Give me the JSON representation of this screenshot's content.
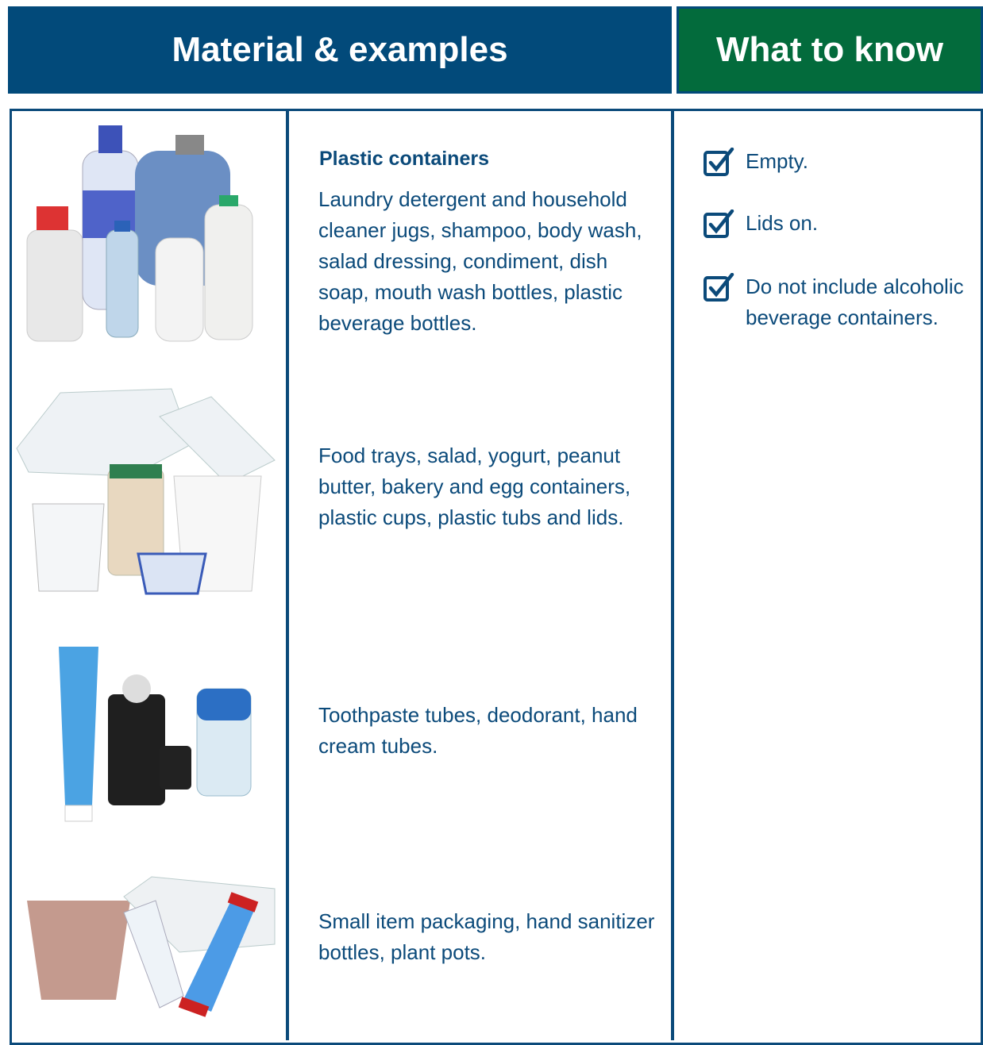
{
  "header": {
    "columns": [
      "Material & examples",
      "What to know"
    ]
  },
  "rows": [
    {
      "heading": "Plastic containers",
      "description": "Laundry detergent and household cleaner jugs, shampoo, body wash, salad dressing, condiment, dish soap, mouth wash bottles, plastic beverage bottles."
    },
    {
      "description": "Food trays, salad, yogurt, peanut butter, bakery and egg containers, plastic cups, plastic tubs and lids."
    },
    {
      "description": "Toothpaste tubes, deodorant, hand cream tubes."
    },
    {
      "description": "Small item packaging, hand sanitizer bottles, plant pots."
    }
  ],
  "checklist": [
    "Empty.",
    "Lids on.",
    "Do not include alcoholic beverage containers."
  ]
}
